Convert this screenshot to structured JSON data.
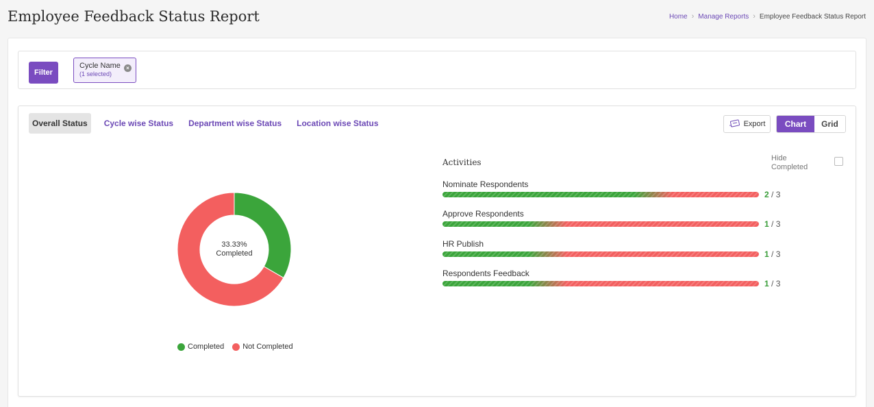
{
  "page": {
    "title": "Employee Feedback Status Report"
  },
  "breadcrumb": {
    "items": [
      "Home",
      "Manage Reports",
      "Employee Feedback Status Report"
    ]
  },
  "filter": {
    "button_label": "Filter",
    "chip_title": "Cycle Name",
    "chip_sub": "(1 selected)"
  },
  "tabs": [
    {
      "label": "Overall Status",
      "active": true
    },
    {
      "label": "Cycle wise Status",
      "active": false
    },
    {
      "label": "Department wise Status",
      "active": false
    },
    {
      "label": "Location wise Status",
      "active": false
    }
  ],
  "toolbar": {
    "export_label": "Export",
    "chart_label": "Chart",
    "grid_label": "Grid",
    "view_selected": "Chart"
  },
  "colors": {
    "accent": "#7a4cc0",
    "completed": "#3ba53b",
    "not_completed": "#f35f5f"
  },
  "chart_data": {
    "type": "pie",
    "categories": [
      "Completed",
      "Not Completed"
    ],
    "values": [
      33.33,
      66.67
    ],
    "center_label_line1": "33.33%",
    "center_label_line2": "Completed",
    "legend_position": "bottom"
  },
  "activities": {
    "header": "Activities",
    "hide_completed_label": "Hide Completed",
    "hide_completed_checked": false,
    "items": [
      {
        "name": "Nominate Respondents",
        "done": 2,
        "total": 3,
        "done_text": "2",
        "rest_text": " / 3"
      },
      {
        "name": "Approve Respondents",
        "done": 1,
        "total": 3,
        "done_text": "1",
        "rest_text": " / 3"
      },
      {
        "name": "HR Publish",
        "done": 1,
        "total": 3,
        "done_text": "1",
        "rest_text": " / 3"
      },
      {
        "name": "Respondents Feedback",
        "done": 1,
        "total": 3,
        "done_text": "1",
        "rest_text": " / 3"
      }
    ]
  }
}
